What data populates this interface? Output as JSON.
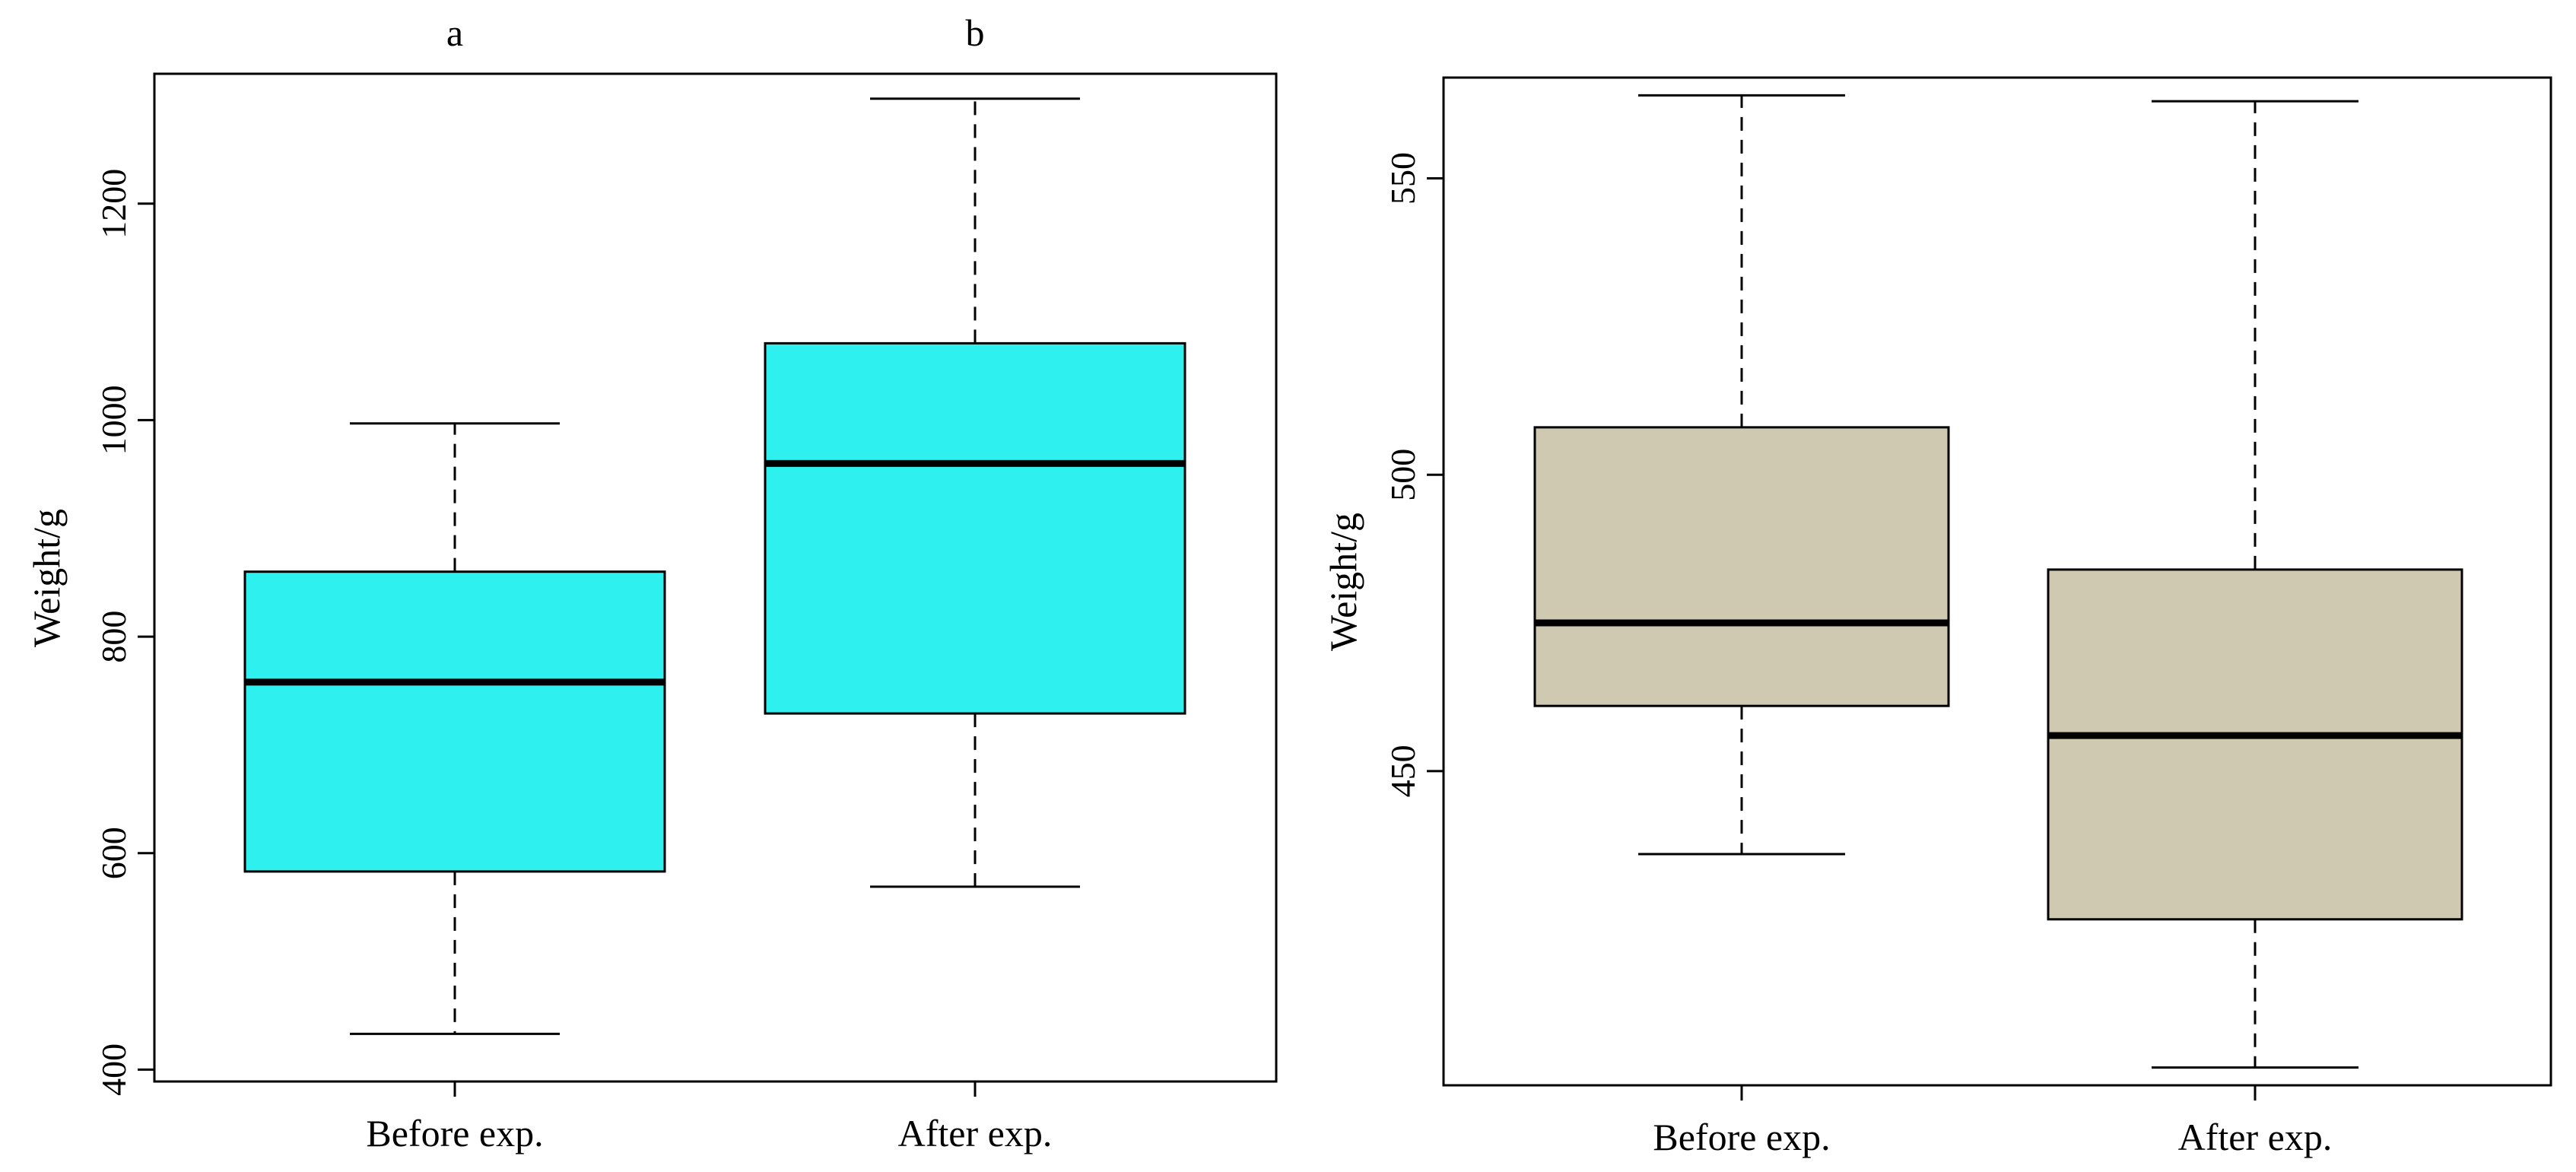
{
  "chart_data": [
    {
      "type": "boxplot",
      "ylabel": "Weight/g",
      "categories": [
        "Before exp.",
        "After exp."
      ],
      "group_labels": [
        "a",
        "b"
      ],
      "yticks": [
        400,
        600,
        800,
        1000,
        1200
      ],
      "ylim": [
        389,
        1320
      ],
      "box_color": "#2EF0EE",
      "boxes": [
        {
          "min": 433,
          "q1": 583,
          "median": 758,
          "q3": 860,
          "max": 997
        },
        {
          "min": 569,
          "q1": 729,
          "median": 960,
          "q3": 1071,
          "max": 1297
        }
      ]
    },
    {
      "type": "boxplot",
      "ylabel": "Weight/g",
      "categories": [
        "Before exp.",
        "After exp."
      ],
      "yticks": [
        450,
        500,
        550
      ],
      "ylim": [
        397,
        567
      ],
      "box_color": "#D0C9B1",
      "boxes": [
        {
          "min": 436,
          "q1": 461,
          "median": 475,
          "q3": 508,
          "max": 564
        },
        {
          "min": 400,
          "q1": 425,
          "median": 456,
          "q3": 484,
          "max": 563
        }
      ]
    }
  ]
}
